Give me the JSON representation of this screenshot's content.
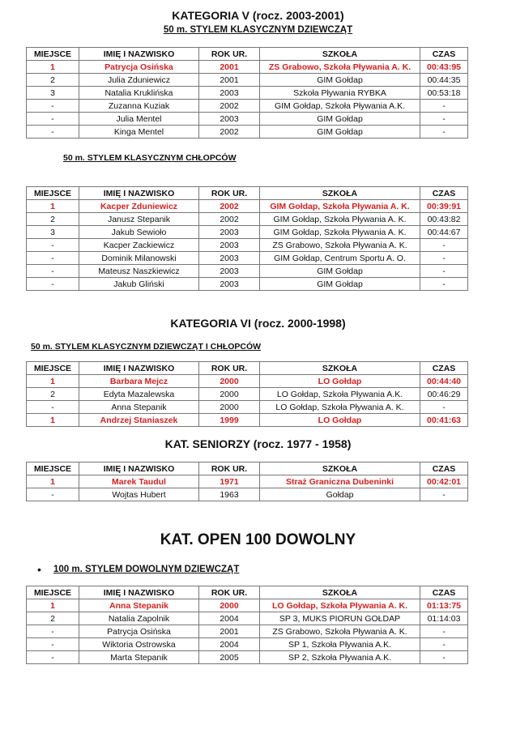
{
  "headers": [
    "MIEJSCE",
    "IMIĘ I NAZWISKO",
    "ROK UR.",
    "SZKOŁA",
    "CZAS"
  ],
  "colors": {
    "winner": "#d42020",
    "text": "#111111",
    "border": "#777777"
  },
  "sections": [
    {
      "title": "KATEGORIA V (rocz. 2003-2001)",
      "subtitle": "50 m. STYLEM KLASYCZNYM DZIEWCZĄT",
      "rows": [
        {
          "place": "1",
          "name": "Patrycja Osińska",
          "year": "2001",
          "school": "ZS Grabowo, Szkoła Pływania A. K.",
          "time": "00:43:95",
          "winner": true
        },
        {
          "place": "2",
          "name": "Julia Zduniewicz",
          "year": "2001",
          "school": "GIM Gołdap",
          "time": "00:44:35"
        },
        {
          "place": "3",
          "name": "Natalia Kruklińska",
          "year": "2003",
          "school": "Szkoła Pływania RYBKA",
          "time": "00:53:18"
        },
        {
          "place": "-",
          "name": "Zuzanna Kuziak",
          "year": "2002",
          "school": "GIM Gołdap, Szkoła Pływania A.K.",
          "time": "-"
        },
        {
          "place": "-",
          "name": "Julia Mentel",
          "year": "2003",
          "school": "GIM Gołdap",
          "time": "-"
        },
        {
          "place": "-",
          "name": "Kinga Mentel",
          "year": "2002",
          "school": "GIM Gołdap",
          "time": "-"
        }
      ]
    },
    {
      "subtitle": "50 m. STYLEM KLASYCZNYM CHŁOPCÓW",
      "rows": [
        {
          "place": "1",
          "name": "Kacper Zduniewicz",
          "year": "2002",
          "school": "GIM Gołdap, Szkoła Pływania A. K.",
          "time": "00:39:91",
          "winner": true
        },
        {
          "place": "2",
          "name": "Janusz Stepanik",
          "year": "2002",
          "school": "GIM Gołdap, Szkoła Pływania A. K.",
          "time": "00:43:82"
        },
        {
          "place": "3",
          "name": "Jakub Sewioło",
          "year": "2003",
          "school": "GIM Gołdap, Szkoła Pływania A. K.",
          "time": "00:44:67"
        },
        {
          "place": "-",
          "name": "Kacper Zackiewicz",
          "year": "2003",
          "school": "ZS Grabowo, Szkoła Pływania A. K.",
          "time": "-"
        },
        {
          "place": "-",
          "name": "Dominik Milanowski",
          "year": "2003",
          "school": "GIM Gołdap, Centrum Sportu A. O.",
          "time": "-"
        },
        {
          "place": "-",
          "name": "Mateusz Naszkiewicz",
          "year": "2003",
          "school": "GIM Gołdap",
          "time": "-"
        },
        {
          "place": "-",
          "name": "Jakub Gliński",
          "year": "2003",
          "school": "GIM Gołdap",
          "time": "-"
        }
      ]
    },
    {
      "title": "KATEGORIA VI (rocz. 2000-1998)",
      "subtitle": "50 m. STYLEM KLASYCZNYM DZIEWCZĄT I CHŁOPCÓW",
      "rows": [
        {
          "place": "1",
          "name": "Barbara Mejcz",
          "year": "2000",
          "school": "LO Gołdap",
          "time": "00:44:40",
          "winner": true
        },
        {
          "place": "2",
          "name": "Edyta Mazalewska",
          "year": "2000",
          "school": "LO Gołdap, Szkoła Pływania A.K.",
          "time": "00:46:29"
        },
        {
          "place": "-",
          "name": "Anna Stepanik",
          "year": "2000",
          "school": "LO Gołdap, Szkoła Pływania A. K.",
          "time": "-"
        },
        {
          "place": "1",
          "name": "Andrzej Staniaszek",
          "year": "1999",
          "school": "LO Gołdap",
          "time": "00:41:63",
          "winner": true
        }
      ]
    },
    {
      "title": "KAT.  SENIORZY (rocz. 1977 - 1958)",
      "rows": [
        {
          "place": "1",
          "name": "Marek Taudul",
          "year": "1971",
          "school": "Straż Graniczna Dubeninki",
          "time": "00:42:01",
          "winner": true
        },
        {
          "place": "-",
          "name": "Wojtas Hubert",
          "year": "1963",
          "school": "Gołdap",
          "time": "-"
        }
      ]
    },
    {
      "title": "KAT. OPEN 100 DOWOLNY",
      "subtitle": "100 m. STYLEM DOWOLNYM DZIEWCZĄT",
      "bullet": "•",
      "rows": [
        {
          "place": "1",
          "name": "Anna Stepanik",
          "year": "2000",
          "school": "LO Gołdap, Szkoła Pływania A. K.",
          "time": "01:13:75",
          "winner": true
        },
        {
          "place": "2",
          "name": "Natalia Zapolnik",
          "year": "2004",
          "school": "SP 3, MUKS PIORUN GOŁDAP",
          "time": "01:14:03"
        },
        {
          "place": "-",
          "name": "Patrycja Osińska",
          "year": "2001",
          "school": "ZS Grabowo, Szkoła Pływania A. K.",
          "time": "-"
        },
        {
          "place": "-",
          "name": "Wiktoria Ostrowska",
          "year": "2004",
          "school": "SP 1, Szkoła Pływania A.K.",
          "time": "-"
        },
        {
          "place": "-",
          "name": "Marta Stepanik",
          "year": "2005",
          "school": "SP 2, Szkoła Pływania A.K.",
          "time": "-"
        }
      ]
    }
  ]
}
